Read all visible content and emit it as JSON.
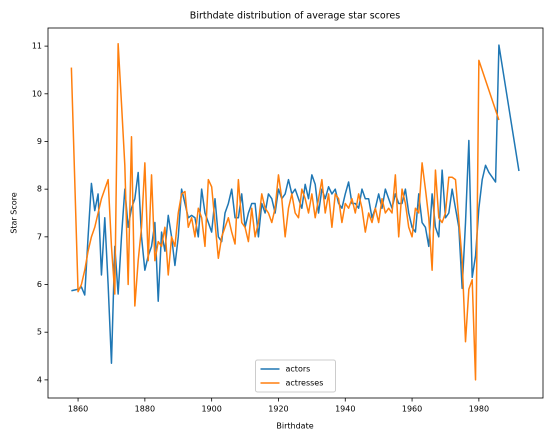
{
  "chart_data": {
    "type": "line",
    "title": "Birthdate distribution of average star scores",
    "xlabel": "Birthdate",
    "ylabel": "Star Score",
    "xlim": [
      1851,
      1999.2
    ],
    "ylim": [
      3.62,
      11.38
    ],
    "xticks": [
      1860,
      1880,
      1900,
      1920,
      1940,
      1960,
      1980
    ],
    "yticks": [
      4,
      5,
      6,
      7,
      8,
      9,
      10,
      11
    ],
    "legend": "lower center",
    "series": [
      {
        "name": "actors",
        "color": "#1f77b4",
        "x": [
          1858,
          1860,
          1861,
          1862,
          1863,
          1864,
          1865,
          1866,
          1867,
          1868,
          1869,
          1870,
          1871,
          1872,
          1873,
          1874,
          1875,
          1876,
          1877,
          1878,
          1879,
          1880,
          1881,
          1882,
          1883,
          1884,
          1885,
          1886,
          1887,
          1888,
          1889,
          1890,
          1891,
          1892,
          1893,
          1894,
          1895,
          1896,
          1897,
          1898,
          1899,
          1900,
          1901,
          1902,
          1903,
          1904,
          1905,
          1906,
          1907,
          1908,
          1909,
          1910,
          1911,
          1912,
          1913,
          1914,
          1915,
          1916,
          1917,
          1918,
          1919,
          1920,
          1921,
          1922,
          1923,
          1924,
          1925,
          1926,
          1927,
          1928,
          1929,
          1930,
          1931,
          1932,
          1933,
          1934,
          1935,
          1936,
          1937,
          1938,
          1939,
          1940,
          1941,
          1942,
          1943,
          1944,
          1945,
          1946,
          1947,
          1948,
          1949,
          1950,
          1951,
          1952,
          1953,
          1954,
          1955,
          1956,
          1957,
          1958,
          1959,
          1960,
          1961,
          1962,
          1963,
          1964,
          1965,
          1966,
          1967,
          1968,
          1969,
          1970,
          1971,
          1972,
          1973,
          1974,
          1975,
          1976,
          1977,
          1978,
          1979,
          1980,
          1981,
          1982,
          1983,
          1984,
          1985,
          1986,
          1992
        ],
        "values": [
          5.87,
          5.9,
          5.95,
          5.78,
          7.0,
          8.12,
          7.55,
          7.9,
          6.2,
          7.4,
          6.0,
          4.35,
          6.8,
          5.8,
          7.0,
          8.0,
          7.2,
          7.6,
          7.8,
          8.35,
          7.0,
          6.3,
          6.6,
          6.8,
          7.3,
          5.65,
          7.1,
          6.7,
          7.45,
          7.0,
          6.4,
          7.0,
          8.0,
          7.7,
          7.4,
          7.45,
          7.4,
          7.0,
          8.0,
          7.5,
          7.3,
          7.1,
          7.8,
          7.0,
          6.9,
          7.5,
          7.7,
          8.0,
          7.4,
          7.4,
          7.9,
          7.2,
          7.5,
          7.7,
          7.7,
          7.0,
          7.7,
          7.5,
          7.9,
          7.8,
          7.5,
          8.0,
          7.8,
          7.9,
          8.2,
          7.9,
          8.0,
          7.8,
          7.6,
          8.1,
          7.8,
          8.3,
          8.1,
          7.5,
          8.0,
          7.8,
          8.05,
          7.9,
          8.0,
          7.7,
          7.6,
          7.9,
          8.15,
          7.7,
          7.7,
          7.6,
          8.0,
          7.8,
          7.8,
          7.4,
          7.6,
          7.9,
          7.6,
          8.0,
          7.8,
          7.6,
          7.9,
          7.7,
          7.7,
          8.0,
          7.5,
          7.2,
          7.1,
          7.9,
          7.3,
          7.2,
          6.8,
          7.9,
          7.2,
          7.0,
          8.4,
          7.4,
          7.5,
          8.0,
          7.6,
          7.2,
          5.92,
          7.3,
          9.02,
          6.15,
          6.6,
          7.6,
          8.2,
          8.5,
          8.35,
          8.25,
          8.15,
          11.02,
          8.38
        ]
      },
      {
        "name": "actresses",
        "color": "#ff7f0e",
        "x": [
          1858,
          1860,
          1861,
          1862,
          1863,
          1864,
          1865,
          1866,
          1867,
          1868,
          1869,
          1870,
          1871,
          1872,
          1873,
          1874,
          1875,
          1876,
          1877,
          1878,
          1879,
          1880,
          1881,
          1882,
          1883,
          1884,
          1885,
          1886,
          1887,
          1888,
          1889,
          1890,
          1891,
          1892,
          1893,
          1894,
          1895,
          1896,
          1897,
          1898,
          1899,
          1900,
          1901,
          1902,
          1903,
          1904,
          1905,
          1906,
          1907,
          1908,
          1909,
          1910,
          1911,
          1912,
          1913,
          1914,
          1915,
          1916,
          1917,
          1918,
          1919,
          1920,
          1921,
          1922,
          1923,
          1924,
          1925,
          1926,
          1927,
          1928,
          1929,
          1930,
          1931,
          1932,
          1933,
          1934,
          1935,
          1936,
          1937,
          1938,
          1939,
          1940,
          1941,
          1942,
          1943,
          1944,
          1945,
          1946,
          1947,
          1948,
          1949,
          1950,
          1951,
          1952,
          1953,
          1954,
          1955,
          1956,
          1957,
          1958,
          1959,
          1960,
          1961,
          1962,
          1963,
          1964,
          1965,
          1966,
          1967,
          1968,
          1969,
          1970,
          1971,
          1972,
          1973,
          1975,
          1976,
          1977,
          1978,
          1979,
          1980,
          1986
        ],
        "values": [
          10.55,
          5.85,
          6.0,
          6.3,
          6.7,
          7.0,
          7.2,
          7.5,
          7.8,
          8.0,
          8.2,
          6.8,
          5.8,
          11.05,
          9.8,
          8.5,
          6.0,
          9.1,
          5.55,
          6.5,
          7.2,
          8.55,
          6.5,
          8.3,
          6.5,
          6.9,
          6.8,
          7.2,
          6.2,
          7.0,
          6.8,
          7.5,
          7.9,
          7.95,
          7.2,
          7.4,
          7.0,
          7.6,
          7.4,
          6.8,
          8.2,
          8.05,
          7.3,
          6.55,
          7.0,
          7.2,
          7.4,
          7.1,
          6.85,
          8.2,
          7.3,
          7.2,
          6.9,
          7.6,
          7.0,
          7.3,
          7.9,
          7.6,
          7.5,
          7.3,
          7.6,
          8.3,
          7.8,
          7.0,
          7.6,
          7.9,
          7.5,
          7.4,
          8.0,
          7.8,
          7.5,
          7.9,
          7.4,
          7.8,
          8.2,
          7.5,
          7.9,
          7.2,
          7.9,
          7.8,
          7.3,
          7.7,
          7.6,
          7.8,
          7.5,
          7.9,
          7.6,
          7.1,
          7.5,
          7.3,
          7.6,
          7.3,
          7.8,
          7.5,
          7.6,
          7.5,
          8.3,
          7.0,
          8.0,
          7.7,
          7.2,
          7.0,
          7.6,
          7.5,
          8.55,
          8.0,
          7.4,
          6.3,
          8.4,
          7.4,
          7.3,
          7.5,
          8.25,
          8.25,
          8.2,
          6.5,
          4.8,
          5.9,
          6.1,
          4.0,
          10.7,
          9.45
        ]
      }
    ]
  }
}
